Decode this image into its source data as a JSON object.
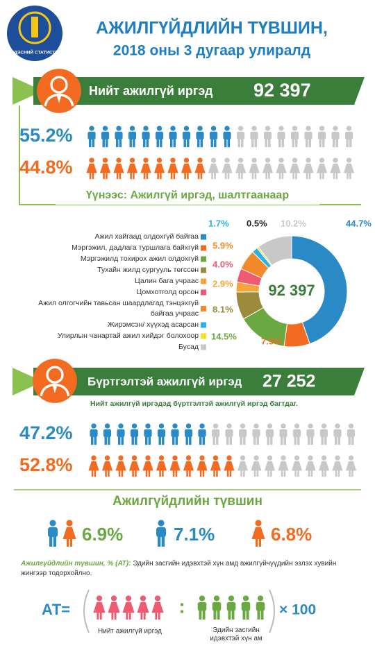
{
  "header": {
    "logo_text": "ҮНДЭСНИЙ СТАТИСТИК",
    "title_line1": "АЖИЛГҮЙДЛИЙН ТҮВШИН,",
    "title_line2": "2018 оны 3 дугаар улиралд"
  },
  "total": {
    "label": "Нийт ажилгүй иргэд",
    "value": "92 397",
    "rows": [
      {
        "value": 55.2,
        "label": "55.2%",
        "color": "#2a8ac6",
        "icon": "male"
      },
      {
        "value": 44.8,
        "label": "44.8%",
        "color": "#f26b21",
        "icon": "female"
      }
    ],
    "subtitle": "Үүнээс: Ажилгүй иргэд, шалтгаанаар"
  },
  "chart_data": {
    "type": "pie",
    "donut": true,
    "center_label": "92 397",
    "categories": [
      "Ажил хайгаад олдохгүй байгаа",
      "Мэргэжил, дадлага туршлага байхгүй",
      "Мэргэжилд тохирох ажил олдохгүй",
      "Тухайн жилд сургууль төгссөн",
      "Цалин бага учраас",
      "Цомхотголд орсон",
      "Ажил олгогчийн тавьсан шаардлагад тэнцэхгүй байгаа учраас",
      "Жирэмсэн/ хүүхэд асарсан",
      "Улирлын чанартай ажил хийдэг болохоор",
      "Бусад"
    ],
    "values": [
      44.7,
      7.5,
      14.5,
      8.1,
      2.9,
      4.0,
      5.9,
      1.7,
      0.5,
      10.2
    ],
    "value_labels": [
      "44.7%",
      "7.5%",
      "14.5%",
      "8.1%",
      "2.9%",
      "4.0%",
      "5.9%",
      "1.7%",
      "0.5%",
      "10.2%"
    ],
    "colors": [
      "#2a8ac6",
      "#f26b21",
      "#6aa842",
      "#9b8a3c",
      "#f6a43a",
      "#ee5a6f",
      "#f38a2a",
      "#29b3e6",
      "#f5e11e",
      "#c8c8c8"
    ]
  },
  "registered": {
    "label": "Бүртгэлтэй ажилгүй иргэд",
    "value": "27 252",
    "subtitle": "Нийт ажилгүй иргэдэд бүртгэлтэй ажилгүй иргэд багтдаг.",
    "rows": [
      {
        "value": 47.2,
        "label": "47.2%",
        "color": "#2a8ac6",
        "icon": "male"
      },
      {
        "value": 52.8,
        "label": "52.8%",
        "color": "#f26b21",
        "icon": "female"
      }
    ]
  },
  "rate": {
    "title": "Ажилгүйдлийн түвшин",
    "total": "6.9%",
    "male": "7.1%",
    "female": "6.8%",
    "definition_term": "Ажилгүйдлийн түвшин, % (АТ):",
    "definition_text": "Эдийн засгийн идэвхтэй хүн амд ажилгүйчүүдийн эзлэх хувийн жингээр тодорхойлно.",
    "formula": {
      "lhs": "АТ=",
      "divider": ":",
      "times": "× 100",
      "numerator": "Нийт ажилгүй иргэд",
      "denominator": "Эдийн засгийн идэвхтэй хүн ам"
    }
  }
}
